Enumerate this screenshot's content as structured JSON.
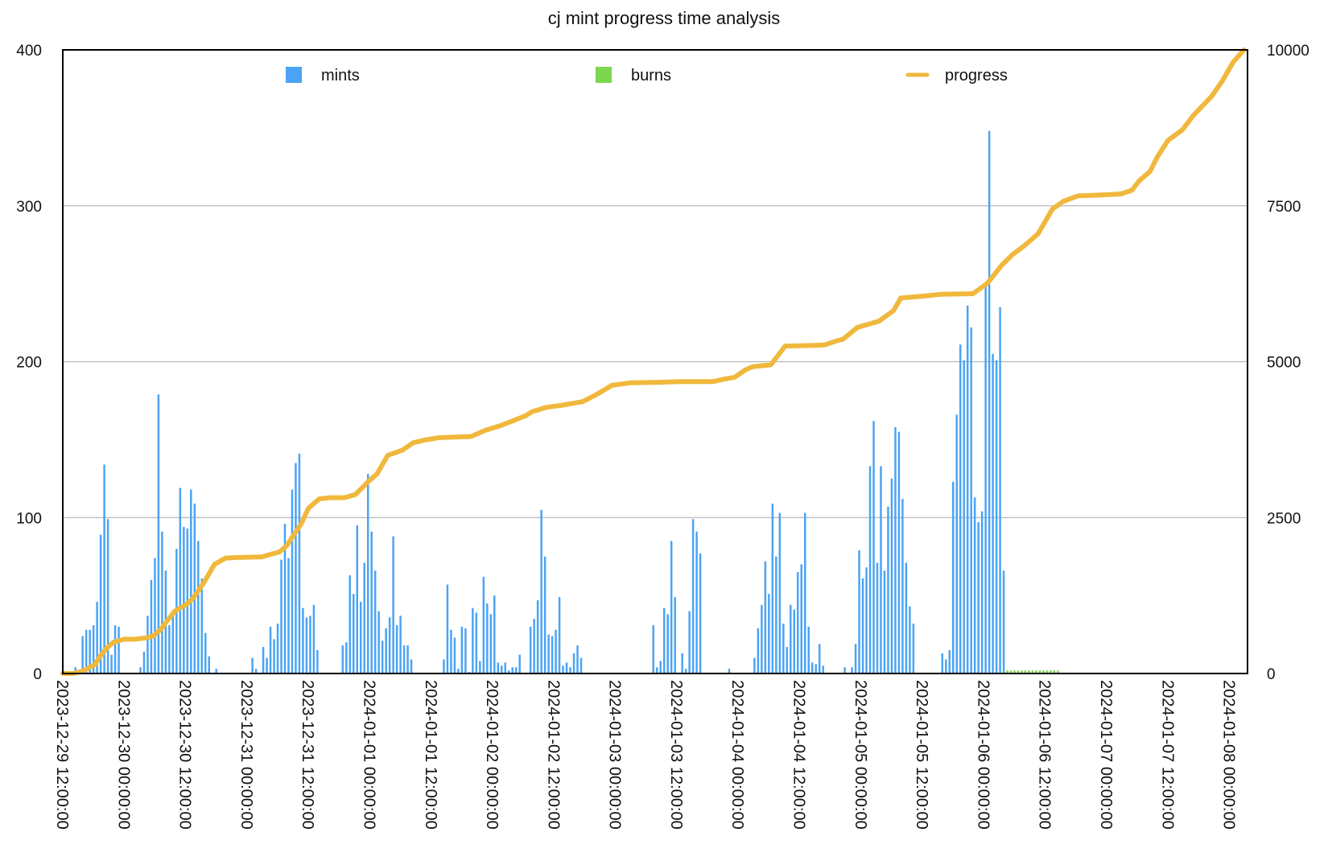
{
  "chart_data": {
    "type": "bar",
    "title": "cj mint progress time analysis",
    "xlabel": "",
    "ylabel": "",
    "y_left": {
      "min": 0,
      "max": 400,
      "ticks": [
        0,
        100,
        200,
        300,
        400
      ]
    },
    "y_right": {
      "min": 0,
      "max": 10000,
      "ticks": [
        0,
        2500,
        5000,
        7500,
        10000
      ]
    },
    "grid": true,
    "legend_position": "top",
    "x_ticks": [
      "2023-12-29 12:00:00",
      "2023-12-30 00:00:00",
      "2023-12-30 12:00:00",
      "2023-12-31 00:00:00",
      "2023-12-31 12:00:00",
      "2024-01-01 00:00:00",
      "2024-01-01 12:00:00",
      "2024-01-02 00:00:00",
      "2024-01-02 12:00:00",
      "2024-01-03 00:00:00",
      "2024-01-03 12:00:00",
      "2024-01-04 00:00:00",
      "2024-01-04 12:00:00",
      "2024-01-05 00:00:00",
      "2024-01-05 12:00:00",
      "2024-01-06 00:00:00",
      "2024-01-06 12:00:00",
      "2024-01-07 00:00:00",
      "2024-01-07 12:00:00",
      "2024-01-08 00:00:00"
    ],
    "hourly_series_start": "2023-12-29 12:00:00",
    "series": [
      {
        "name": "mints",
        "axis": "left",
        "kind": "bar",
        "color": "#4aa3f5",
        "values": [
          0,
          0,
          0,
          4,
          0,
          24,
          28,
          28,
          31,
          46,
          89,
          134,
          99,
          12,
          31,
          30,
          0,
          0,
          0,
          0,
          0,
          4,
          14,
          37,
          60,
          74,
          179,
          91,
          66,
          31,
          39,
          80,
          119,
          94,
          93,
          118,
          109,
          85,
          61,
          26,
          11,
          0,
          3,
          0,
          0,
          0,
          0,
          0,
          0,
          0,
          0,
          0,
          10,
          3,
          0,
          17,
          10,
          30,
          22,
          32,
          73,
          96,
          74,
          118,
          135,
          141,
          42,
          36,
          37,
          44,
          15,
          0,
          0,
          0,
          0,
          0,
          0,
          18,
          20,
          63,
          51,
          95,
          46,
          71,
          128,
          91,
          66,
          40,
          21,
          29,
          36,
          88,
          31,
          37,
          18,
          18,
          9,
          0,
          0,
          0,
          0,
          0,
          0,
          0,
          0,
          9,
          57,
          28,
          23,
          3,
          30,
          29,
          1,
          42,
          39,
          8,
          62,
          45,
          38,
          50,
          7,
          5,
          7,
          2,
          4,
          4,
          12,
          0,
          0,
          30,
          35,
          47,
          105,
          75,
          25,
          24,
          28,
          49,
          5,
          7,
          4,
          13,
          18,
          10,
          0,
          0,
          0,
          0,
          0,
          0,
          0,
          0,
          0,
          0,
          0,
          0,
          0,
          0,
          0,
          0,
          0,
          0,
          0,
          31,
          4,
          8,
          42,
          38,
          85,
          49,
          0,
          13,
          3,
          40,
          99,
          91,
          77,
          0,
          0,
          0,
          0,
          0,
          0,
          0,
          3,
          0,
          0,
          0,
          0,
          0,
          0,
          10,
          29,
          44,
          72,
          51,
          109,
          75,
          103,
          32,
          17,
          44,
          41,
          65,
          70,
          103,
          30,
          7,
          6,
          19,
          5,
          0,
          0,
          0,
          0,
          0,
          4,
          0,
          4,
          19,
          79,
          61,
          68,
          133,
          162,
          71,
          133,
          66,
          107,
          125,
          158,
          155,
          112,
          71,
          43,
          32,
          0,
          0,
          0,
          0,
          0,
          0,
          0,
          13,
          9,
          15,
          123,
          166,
          211,
          201,
          236,
          222,
          113,
          97,
          104,
          250,
          348,
          205,
          201,
          235,
          66
        ]
      },
      {
        "name": "burns",
        "axis": "left",
        "kind": "bar",
        "color": "#7dd64f",
        "values": [
          0,
          0,
          0,
          0,
          0,
          0,
          0,
          0,
          0,
          0,
          0,
          0,
          0,
          0,
          0,
          0,
          0,
          0,
          0,
          0,
          0,
          0,
          0,
          0,
          0,
          0,
          0,
          0,
          0,
          0,
          0,
          0,
          0,
          0,
          0,
          0,
          0,
          0,
          0,
          0,
          0,
          0,
          0,
          0,
          0,
          0,
          0,
          0,
          0,
          0,
          0,
          0,
          0,
          0,
          0,
          0,
          0,
          0,
          0,
          0,
          0,
          0,
          0,
          0,
          0,
          0,
          0,
          0,
          0,
          0,
          0,
          0,
          0,
          0,
          0,
          0,
          0,
          0,
          0,
          0,
          0,
          0,
          0,
          0,
          0,
          0,
          0,
          0,
          0,
          0,
          0,
          0,
          0,
          0,
          0,
          0,
          0,
          0,
          0,
          0,
          0,
          0,
          0,
          0,
          0,
          0,
          0,
          0,
          0,
          0,
          0,
          0,
          0,
          0,
          0,
          0,
          0,
          0,
          0,
          0,
          0,
          0,
          0,
          0,
          0,
          0,
          0,
          0,
          0,
          0,
          0,
          0,
          0,
          0,
          0,
          0,
          0,
          0,
          0,
          0,
          0,
          0,
          0,
          0,
          0,
          0,
          0,
          0,
          0,
          0,
          0,
          0,
          0,
          0,
          0,
          0,
          0,
          0,
          0,
          0,
          0,
          0,
          0,
          0,
          0,
          0,
          0,
          0,
          0,
          0,
          0,
          0,
          0,
          0,
          0,
          0,
          0,
          0,
          0,
          0,
          0,
          0,
          0,
          0,
          0,
          0,
          0,
          0,
          0,
          0,
          0,
          0,
          0,
          0,
          0,
          0,
          0,
          0,
          0,
          0,
          0,
          0,
          0,
          0,
          0,
          0,
          0,
          0,
          0,
          0,
          0,
          0,
          0,
          0,
          0,
          0,
          0,
          0,
          0,
          0,
          0,
          0,
          0,
          0,
          0,
          0,
          0,
          0,
          0,
          0,
          0,
          0,
          0,
          0,
          0,
          0,
          0,
          0,
          0,
          0,
          0,
          0,
          0,
          0,
          0,
          0,
          0,
          0,
          0,
          0,
          0,
          0,
          0,
          0,
          0,
          0,
          0,
          0,
          0,
          0,
          0,
          2,
          2,
          2,
          2,
          2,
          2,
          2,
          2,
          2,
          2,
          2,
          2,
          2,
          2,
          2
        ]
      },
      {
        "name": "progress",
        "axis": "right",
        "kind": "line",
        "color": "#f0b83c",
        "points": [
          [
            0,
            0
          ],
          [
            3,
            0
          ],
          [
            6,
            50
          ],
          [
            9,
            150
          ],
          [
            10,
            250
          ],
          [
            12,
            400
          ],
          [
            14,
            500
          ],
          [
            17,
            550
          ],
          [
            20,
            550
          ],
          [
            23,
            570
          ],
          [
            25,
            600
          ],
          [
            27,
            700
          ],
          [
            29,
            850
          ],
          [
            31,
            1000
          ],
          [
            34,
            1100
          ],
          [
            36,
            1200
          ],
          [
            39,
            1450
          ],
          [
            42,
            1750
          ],
          [
            45,
            1850
          ],
          [
            48,
            1860
          ],
          [
            55,
            1870
          ],
          [
            60,
            1950
          ],
          [
            62,
            2050
          ],
          [
            66,
            2400
          ],
          [
            68,
            2650
          ],
          [
            71,
            2800
          ],
          [
            74,
            2820
          ],
          [
            78,
            2820
          ],
          [
            81,
            2870
          ],
          [
            85,
            3100
          ],
          [
            87,
            3200
          ],
          [
            90,
            3500
          ],
          [
            94,
            3580
          ],
          [
            97,
            3700
          ],
          [
            100,
            3740
          ],
          [
            104,
            3780
          ],
          [
            108,
            3790
          ],
          [
            113,
            3800
          ],
          [
            117,
            3900
          ],
          [
            121,
            3970
          ],
          [
            125,
            4060
          ],
          [
            128,
            4130
          ],
          [
            130,
            4200
          ],
          [
            134,
            4270
          ],
          [
            138,
            4300
          ],
          [
            141,
            4330
          ],
          [
            144,
            4360
          ],
          [
            147,
            4450
          ],
          [
            150,
            4550
          ],
          [
            152,
            4620
          ],
          [
            157,
            4660
          ],
          [
            165,
            4670
          ],
          [
            171,
            4680
          ],
          [
            180,
            4680
          ],
          [
            183,
            4720
          ],
          [
            186,
            4750
          ],
          [
            189,
            4870
          ],
          [
            191,
            4920
          ],
          [
            196,
            4950
          ],
          [
            200,
            5250
          ],
          [
            208,
            5260
          ],
          [
            211,
            5270
          ],
          [
            214,
            5330
          ],
          [
            216,
            5360
          ],
          [
            220,
            5550
          ],
          [
            226,
            5650
          ],
          [
            230,
            5820
          ],
          [
            232,
            6020
          ],
          [
            238,
            6050
          ],
          [
            243,
            6080
          ],
          [
            252,
            6090
          ],
          [
            256,
            6260
          ],
          [
            260,
            6550
          ],
          [
            263,
            6720
          ],
          [
            266,
            6850
          ],
          [
            270,
            7050
          ],
          [
            274,
            7450
          ],
          [
            277,
            7570
          ],
          [
            281,
            7660
          ],
          [
            286,
            7670
          ],
          [
            290,
            7680
          ],
          [
            293,
            7690
          ],
          [
            296,
            7750
          ],
          [
            298,
            7900
          ],
          [
            301,
            8050
          ],
          [
            303,
            8280
          ],
          [
            306,
            8550
          ],
          [
            310,
            8720
          ],
          [
            313,
            8950
          ],
          [
            318,
            9250
          ],
          [
            321,
            9500
          ],
          [
            324,
            9800
          ],
          [
            327,
            10000
          ]
        ]
      }
    ]
  }
}
